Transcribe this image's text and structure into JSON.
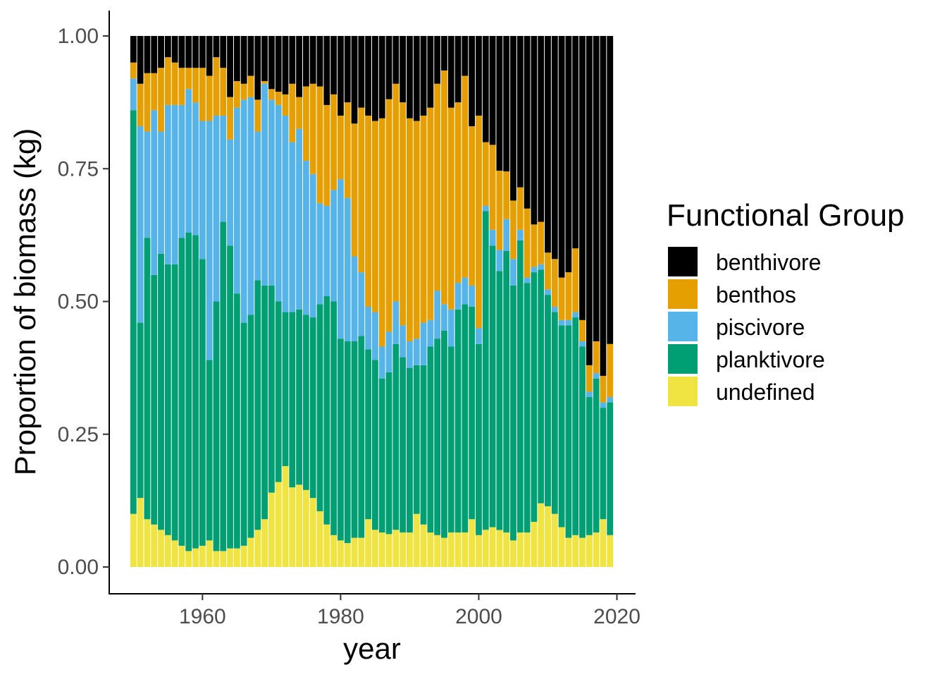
{
  "chart_data": {
    "type": "bar",
    "stacked": true,
    "xlabel": "year",
    "ylabel": "Proportion of biomass (kg)",
    "ylim": [
      0,
      1
    ],
    "yticks": [
      0,
      0.25,
      0.5,
      0.75,
      1
    ],
    "ytick_labels": [
      "0.00",
      "0.25",
      "0.50",
      "0.75",
      "1.00"
    ],
    "xlim": [
      1946.5,
      2022.7
    ],
    "xticks": [
      1960,
      1980,
      2000,
      2020
    ],
    "xtick_labels": [
      "1960",
      "1980",
      "2000",
      "2020"
    ],
    "legend": {
      "title": "Functional Group",
      "position": "right",
      "entries": [
        "benthivore",
        "benthos",
        "piscivore",
        "planktivore",
        "undefined"
      ]
    },
    "series_colors": {
      "undefined": "#F0E442",
      "planktivore": "#009E73",
      "piscivore": "#56B4E9",
      "benthos": "#E69F00",
      "benthivore": "#000000"
    },
    "stack_order": [
      "undefined",
      "planktivore",
      "piscivore",
      "benthos",
      "benthivore"
    ],
    "x": [
      1950,
      1951,
      1952,
      1953,
      1954,
      1955,
      1956,
      1957,
      1958,
      1959,
      1960,
      1961,
      1962,
      1963,
      1964,
      1965,
      1966,
      1967,
      1968,
      1969,
      1970,
      1971,
      1972,
      1973,
      1974,
      1975,
      1976,
      1977,
      1978,
      1979,
      1980,
      1981,
      1982,
      1983,
      1984,
      1985,
      1986,
      1987,
      1988,
      1989,
      1990,
      1991,
      1992,
      1993,
      1994,
      1995,
      1996,
      1997,
      1998,
      1999,
      2000,
      2001,
      2002,
      2003,
      2004,
      2005,
      2006,
      2007,
      2008,
      2009,
      2010,
      2011,
      2012,
      2013,
      2014,
      2015,
      2016,
      2017,
      2018,
      2019
    ],
    "series": [
      {
        "name": "undefined",
        "values": [
          0.1,
          0.13,
          0.09,
          0.08,
          0.07,
          0.06,
          0.05,
          0.04,
          0.03,
          0.035,
          0.04,
          0.05,
          0.03,
          0.03,
          0.035,
          0.035,
          0.04,
          0.055,
          0.07,
          0.09,
          0.14,
          0.16,
          0.19,
          0.15,
          0.155,
          0.145,
          0.13,
          0.105,
          0.08,
          0.06,
          0.05,
          0.045,
          0.055,
          0.055,
          0.09,
          0.07,
          0.065,
          0.065,
          0.07,
          0.065,
          0.065,
          0.1,
          0.08,
          0.065,
          0.06,
          0.055,
          0.065,
          0.065,
          0.065,
          0.09,
          0.06,
          0.07,
          0.075,
          0.07,
          0.065,
          0.05,
          0.065,
          0.065,
          0.085,
          0.12,
          0.115,
          0.1,
          0.075,
          0.055,
          0.06,
          0.055,
          0.06,
          0.065,
          0.09,
          0.06
        ]
      },
      {
        "name": "planktivore",
        "values": [
          0.76,
          0.33,
          0.53,
          0.47,
          0.52,
          0.51,
          0.52,
          0.58,
          0.6,
          0.59,
          0.54,
          0.34,
          0.47,
          0.62,
          0.57,
          0.48,
          0.42,
          0.42,
          0.47,
          0.44,
          0.39,
          0.34,
          0.29,
          0.33,
          0.33,
          0.33,
          0.34,
          0.39,
          0.43,
          0.44,
          0.38,
          0.38,
          0.37,
          0.38,
          0.32,
          0.32,
          0.29,
          0.32,
          0.35,
          0.33,
          0.31,
          0.28,
          0.3,
          0.35,
          0.37,
          0.39,
          0.35,
          0.42,
          0.43,
          0.4,
          0.36,
          0.6,
          0.53,
          0.49,
          0.53,
          0.48,
          0.55,
          0.47,
          0.47,
          0.44,
          0.4,
          0.38,
          0.38,
          0.4,
          0.41,
          0.36,
          0.26,
          0.29,
          0.21,
          0.25
        ]
      },
      {
        "name": "piscivore",
        "values": [
          0.06,
          0.37,
          0.2,
          0.31,
          0.23,
          0.3,
          0.3,
          0.25,
          0.27,
          0.25,
          0.26,
          0.45,
          0.35,
          0.2,
          0.2,
          0.35,
          0.42,
          0.41,
          0.28,
          0.38,
          0.35,
          0.37,
          0.37,
          0.32,
          0.34,
          0.29,
          0.27,
          0.19,
          0.17,
          0.21,
          0.3,
          0.27,
          0.16,
          0.12,
          0.08,
          0.09,
          0.06,
          0.08,
          0.08,
          0.06,
          0.05,
          0.05,
          0.08,
          0.05,
          0.09,
          0.05,
          0.07,
          0.05,
          0.05,
          0.04,
          0.03,
          0.01,
          0.03,
          0.04,
          0.06,
          0.05,
          0.02,
          0.01,
          0.01,
          0.01,
          0.01,
          0.01,
          0.01,
          0.01,
          0.01,
          0.01,
          0.01,
          0.01,
          0.01,
          0.01
        ]
      },
      {
        "name": "benthos",
        "values": [
          0.03,
          0.08,
          0.11,
          0.07,
          0.12,
          0.09,
          0.08,
          0.07,
          0.04,
          0.065,
          0.1,
          0.085,
          0.11,
          0.09,
          0.08,
          0.05,
          0.03,
          0.04,
          0.06,
          0.005,
          0.02,
          0.025,
          0.04,
          0.11,
          0.06,
          0.14,
          0.17,
          0.22,
          0.19,
          0.18,
          0.12,
          0.18,
          0.25,
          0.31,
          0.36,
          0.36,
          0.43,
          0.46,
          0.41,
          0.42,
          0.42,
          0.41,
          0.39,
          0.4,
          0.39,
          0.44,
          0.38,
          0.34,
          0.38,
          0.3,
          0.4,
          0.12,
          0.16,
          0.15,
          0.09,
          0.11,
          0.08,
          0.13,
          0.08,
          0.08,
          0.07,
          0.09,
          0.08,
          0.09,
          0.12,
          0.04,
          0.05,
          0.06,
          0.05,
          0.1
        ]
      },
      {
        "name": "benthivore",
        "values": [
          0.05,
          0.09,
          0.07,
          0.07,
          0.06,
          0.04,
          0.05,
          0.06,
          0.06,
          0.06,
          0.06,
          0.075,
          0.04,
          0.06,
          0.115,
          0.085,
          0.09,
          0.075,
          0.12,
          0.085,
          0.1,
          0.105,
          0.11,
          0.09,
          0.115,
          0.095,
          0.09,
          0.095,
          0.13,
          0.11,
          0.15,
          0.125,
          0.165,
          0.135,
          0.15,
          0.16,
          0.155,
          0.125,
          0.09,
          0.125,
          0.155,
          0.16,
          0.15,
          0.135,
          0.09,
          0.065,
          0.135,
          0.125,
          0.075,
          0.17,
          0.15,
          0.2,
          0.205,
          0.255,
          0.255,
          0.31,
          0.285,
          0.325,
          0.355,
          0.35,
          0.41,
          0.42,
          0.455,
          0.445,
          0.4,
          0.535,
          0.62,
          0.575,
          0.64,
          0.58
        ]
      }
    ]
  }
}
